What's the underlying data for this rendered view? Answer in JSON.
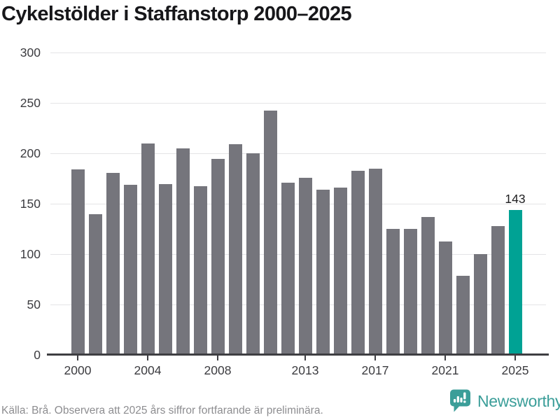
{
  "chart_data": {
    "type": "bar",
    "title": "Cykelstölder i Staffanstorp 2000–2025",
    "x": [
      2000,
      2001,
      2002,
      2003,
      2004,
      2005,
      2006,
      2007,
      2008,
      2009,
      2010,
      2011,
      2012,
      2013,
      2014,
      2015,
      2016,
      2017,
      2018,
      2019,
      2020,
      2021,
      2022,
      2023,
      2024,
      2025
    ],
    "values": [
      183,
      139,
      180,
      168,
      209,
      169,
      204,
      167,
      194,
      208,
      199,
      242,
      170,
      175,
      163,
      165,
      182,
      184,
      124,
      124,
      136,
      112,
      78,
      99,
      127,
      143
    ],
    "highlight": {
      "year": 2025,
      "value": 143,
      "label": "143"
    },
    "y_ticks": [
      0,
      50,
      100,
      150,
      200,
      250,
      300
    ],
    "x_tick_years": [
      2000,
      2004,
      2008,
      2013,
      2017,
      2021,
      2025
    ],
    "ylim": [
      0,
      300
    ],
    "grid": "horizontal-only",
    "legend": "none",
    "bar_color": "#75757c",
    "highlight_color": "#00a294"
  },
  "footer": {
    "source_note": "Källa: Brå. Observera att 2025 års siffror fortfarande är preliminära."
  },
  "branding": {
    "wordmark": "Newsworthy",
    "icon": "newsworthy-chart-bubble-icon",
    "color": "#3b9e99"
  }
}
